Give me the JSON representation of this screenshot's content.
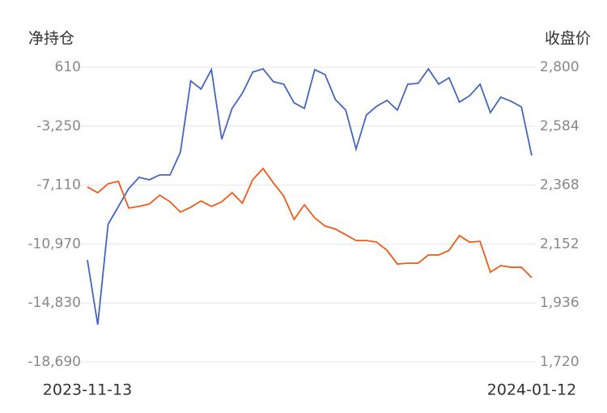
{
  "chart_data": {
    "type": "line",
    "y_title": "净持仓",
    "y2_title": "收盘价",
    "categories": [
      "2023-11-13",
      null,
      null,
      null,
      null,
      null,
      null,
      null,
      null,
      null,
      null,
      null,
      null,
      null,
      null,
      null,
      null,
      null,
      null,
      null,
      null,
      null,
      null,
      null,
      null,
      null,
      null,
      null,
      null,
      null,
      null,
      null,
      null,
      null,
      null,
      null,
      null,
      null,
      null,
      null,
      null,
      null,
      null,
      "2024-01-12"
    ],
    "ylim": [
      -18690,
      610
    ],
    "yticks": [
      610,
      {
        "value": -3250,
        "label": "-3,250"
      },
      {
        "value": -7110,
        "label": "-7,110"
      },
      {
        "value": -10970,
        "label": "-10,970"
      },
      {
        "value": -14830,
        "label": "-14,830"
      },
      {
        "value": -18690,
        "label": "-18,690"
      }
    ],
    "y2lim": [
      1720,
      2800
    ],
    "y2ticks": [
      {
        "value": 2800,
        "label": "2,800"
      },
      {
        "value": 2584,
        "label": "2,584"
      },
      {
        "value": 2368,
        "label": "2,368"
      },
      {
        "value": 2152,
        "label": "2,152"
      },
      {
        "value": 1936,
        "label": "1,936"
      },
      {
        "value": 1720,
        "label": "1,720"
      }
    ],
    "grid": true,
    "series": [
      {
        "color": "#4466c0",
        "values": [
          -12010,
          -16250,
          -9680,
          -8510,
          -7340,
          -6600,
          -6760,
          -6440,
          -6440,
          -4960,
          -290,
          -820,
          450,
          -4110,
          -2090,
          -1090,
          290,
          500,
          -340,
          -500,
          -1720,
          -2090,
          450,
          130,
          -1510,
          -2200,
          -4750,
          -2520,
          -1940,
          -1560,
          -2200,
          -500,
          -450,
          500,
          -500,
          -80,
          -1670,
          -1250,
          -500,
          -2360,
          -1350,
          -1620,
          -1990,
          -5170
        ]
      },
      {
        "color": "#f05a14",
        "axis": "y2",
        "values": [
          2361,
          2340,
          2373,
          2382,
          2284,
          2290,
          2299,
          2331,
          2307,
          2269,
          2287,
          2310,
          2290,
          2307,
          2340,
          2302,
          2388,
          2429,
          2376,
          2328,
          2242,
          2296,
          2248,
          2218,
          2207,
          2186,
          2165,
          2165,
          2159,
          2129,
          2079,
          2082,
          2082,
          2112,
          2112,
          2129,
          2183,
          2159,
          2162,
          2049,
          2073,
          2067,
          2067,
          2029
        ]
      }
    ]
  }
}
